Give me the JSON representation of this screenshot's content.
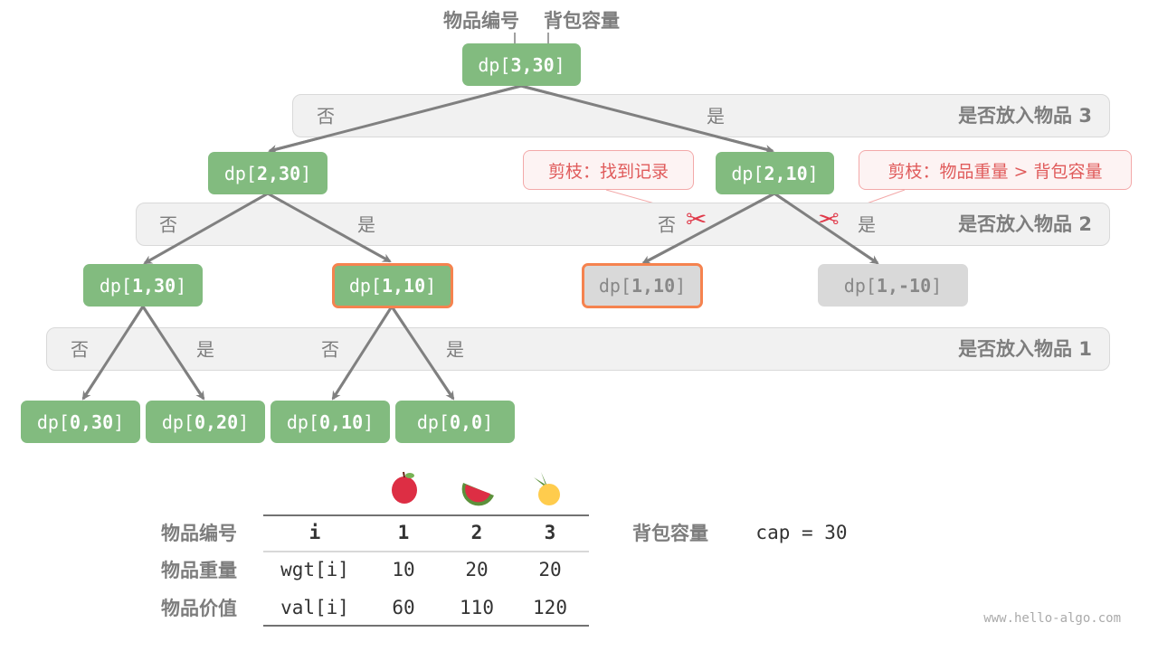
{
  "header": {
    "item_index_label": "物品编号",
    "capacity_label": "背包容量"
  },
  "bands": [
    {
      "title": "是否放入物品 3",
      "no": "否",
      "yes": "是"
    },
    {
      "title": "是否放入物品 2",
      "no1": "否",
      "yes1": "是",
      "no2": "否",
      "yes2": "是"
    },
    {
      "title": "是否放入物品 1",
      "no1": "否",
      "yes1": "是",
      "no2": "否",
      "yes2": "是"
    }
  ],
  "nodes": {
    "n3_30": {
      "pre": "dp[",
      "args": "3,30",
      "post": "]"
    },
    "n2_30": {
      "pre": "dp[",
      "args": "2,30",
      "post": "]"
    },
    "n2_10": {
      "pre": "dp[",
      "args": "2,10",
      "post": "]"
    },
    "n1_30": {
      "pre": "dp[",
      "args": "1,30",
      "post": "]"
    },
    "n1_10": {
      "pre": "dp[",
      "args": "1,10",
      "post": "]"
    },
    "n1_10p": {
      "pre": "dp[",
      "args": "1,10",
      "post": "]"
    },
    "n1_m10": {
      "pre": "dp[",
      "args": "1,-10",
      "post": "]"
    },
    "n0_30": {
      "pre": "dp[",
      "args": "0,30",
      "post": "]"
    },
    "n0_20": {
      "pre": "dp[",
      "args": "0,20",
      "post": "]"
    },
    "n0_10": {
      "pre": "dp[",
      "args": "0,10",
      "post": "]"
    },
    "n0_0": {
      "pre": "dp[",
      "args": "0,0",
      "post": "]"
    }
  },
  "callouts": {
    "found": "剪枝：找到记录",
    "overweight": "剪枝：物品重量 > 背包容量"
  },
  "table": {
    "fruits": [
      "apple-icon",
      "watermelon-icon",
      "pineapple-icon"
    ],
    "rows": [
      {
        "label": "物品编号",
        "cells": [
          "i",
          "1",
          "2",
          "3"
        ]
      },
      {
        "label": "物品重量",
        "cells": [
          "wgt[i]",
          "10",
          "20",
          "20"
        ]
      },
      {
        "label": "物品价值",
        "cells": [
          "val[i]",
          "60",
          "110",
          "120"
        ]
      }
    ],
    "capacity_label": "背包容量",
    "capacity_value": "cap = 30"
  },
  "watermark": "www.hello-algo.com",
  "colors": {
    "node": "#82bb7f",
    "pruned": "#d9d9d9",
    "highlight": "#f5834f",
    "callout": "#e05b5b"
  }
}
